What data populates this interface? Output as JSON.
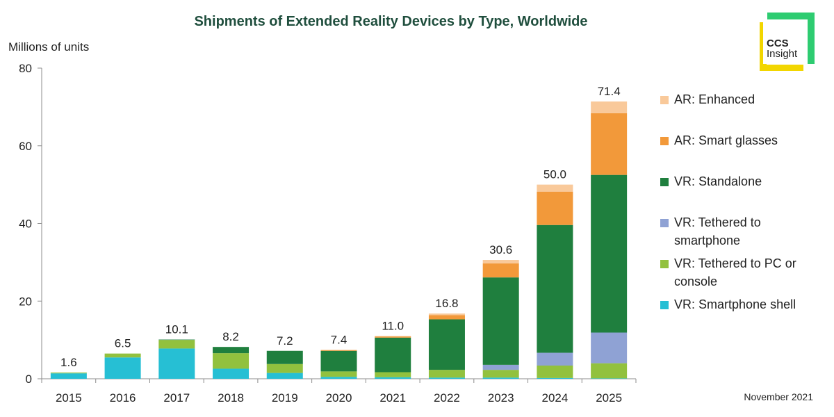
{
  "title": "Shipments of Extended Reality Devices by Type, Worldwide",
  "footnote": "November 2021",
  "logo": {
    "line1": "CCS",
    "line2": "Insight",
    "colors": {
      "green": "#2ecc71",
      "yellow": "#f2d600"
    }
  },
  "chart_data": {
    "type": "bar",
    "stacked": true,
    "title": "Shipments of Extended Reality Devices by Type, Worldwide",
    "ylabel": "Millions of units",
    "xlabel": "",
    "ylim": [
      0,
      80
    ],
    "yticks": [
      0,
      20,
      40,
      60,
      80
    ],
    "grid": false,
    "legend_position": "right",
    "categories": [
      "2015",
      "2016",
      "2017",
      "2018",
      "2019",
      "2020",
      "2021",
      "2022",
      "2023",
      "2024",
      "2025"
    ],
    "totals": [
      "1.6",
      "6.5",
      "10.1",
      "8.2",
      "7.2",
      "7.4",
      "11.0",
      "16.8",
      "30.6",
      "50.0",
      "71.4"
    ],
    "series": [
      {
        "name": "VR: Smartphone shell",
        "color": "#26bfd4",
        "values": [
          1.4,
          5.5,
          7.8,
          2.6,
          1.5,
          0.5,
          0.4,
          0.3,
          0.3,
          0.2,
          0.1
        ]
      },
      {
        "name": "VR: Tethered to PC or console",
        "color": "#92c13e",
        "values": [
          0.2,
          1.0,
          2.2,
          4.0,
          2.3,
          1.4,
          1.3,
          2.0,
          2.0,
          3.2,
          3.9
        ]
      },
      {
        "name": "VR: Tethered to smartphone",
        "color": "#8fa2d4",
        "values": [
          0.0,
          0.0,
          0.0,
          0.0,
          0.0,
          0.0,
          0.0,
          0.0,
          1.3,
          3.3,
          7.9
        ]
      },
      {
        "name": "VR: Standalone",
        "color": "#1f7f3e",
        "values": [
          0.0,
          0.0,
          0.1,
          1.6,
          3.4,
          5.3,
          8.9,
          13.0,
          22.5,
          32.9,
          40.6
        ]
      },
      {
        "name": "AR: Smart glasses",
        "color": "#f2993a",
        "values": [
          0.0,
          0.0,
          0.0,
          0.0,
          0.0,
          0.2,
          0.3,
          1.1,
          3.6,
          8.6,
          15.9
        ]
      },
      {
        "name": "AR: Enhanced",
        "color": "#f9c99a",
        "values": [
          0.0,
          0.0,
          0.0,
          0.0,
          0.0,
          0.0,
          0.1,
          0.4,
          0.9,
          1.8,
          3.0
        ]
      }
    ]
  },
  "legend": [
    {
      "label": "AR: Enhanced",
      "color": "#f9c99a"
    },
    {
      "label": "AR: Smart glasses",
      "color": "#f2993a"
    },
    {
      "label": "VR: Standalone",
      "color": "#1f7f3e"
    },
    {
      "label": "VR: Tethered to smartphone",
      "color": "#8fa2d4"
    },
    {
      "label": "VR: Tethered to PC or console",
      "color": "#92c13e"
    },
    {
      "label": "VR: Smartphone shell",
      "color": "#26bfd4"
    }
  ]
}
